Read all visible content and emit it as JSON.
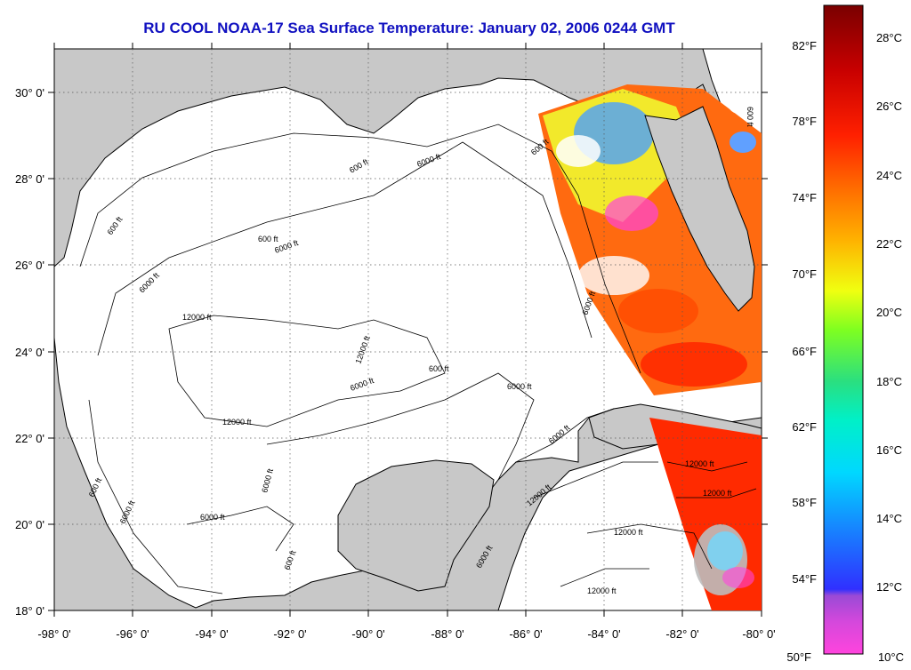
{
  "title": "RU COOL  NOAA-17  Sea Surface Temperature:  January 02, 2006 0244 GMT",
  "map": {
    "lon_range": [
      -98,
      -80
    ],
    "lat_range": [
      18,
      31
    ],
    "lon_ticks": [
      "-98° 0'",
      "-96° 0'",
      "-94° 0'",
      "-92° 0'",
      "-90° 0'",
      "-88° 0'",
      "-86° 0'",
      "-84° 0'",
      "-82° 0'",
      "-80° 0'"
    ],
    "lat_ticks": [
      "30° 0'",
      "28° 0'",
      "26° 0'",
      "24° 0'",
      "22° 0'",
      "20° 0'",
      "18° 0'"
    ],
    "contour_labels": [
      "600 ft",
      "6000 ft",
      "12000 ft",
      "600 ft",
      "6000 ft",
      "600 ft",
      "6000 ft",
      "12000 ft",
      "6000 ft",
      "600 ft",
      "6000 ft",
      "12000 ft",
      "6000 ft",
      "600 ft",
      "6000 ft",
      "6000 ft",
      "600 ft",
      "12000 ft",
      "6000 ft",
      "12000 ft",
      "12000 ft",
      "12000 ft",
      "6000 ft",
      "600 ft",
      "6000 ft",
      "12000 ft",
      "600 ft"
    ],
    "colors": {
      "land": "#c8c8c8",
      "water_nodata": "#ffffff",
      "grid": "#555555"
    }
  },
  "colorbar": {
    "fahrenheit_labels": [
      "82°F",
      "78°F",
      "74°F",
      "70°F",
      "66°F",
      "62°F",
      "58°F",
      "54°F",
      "50°F"
    ],
    "celsius_labels": [
      "28°C",
      "26°C",
      "24°C",
      "22°C",
      "20°C",
      "18°C",
      "16°C",
      "14°C",
      "12°C",
      "10°C"
    ],
    "celsius_range": [
      10,
      29
    ],
    "stops": [
      "#ff44dd",
      "#9a4ad6",
      "#2020ff",
      "#1a78ff",
      "#00e8f0",
      "#2adf80",
      "#7fff20",
      "#f0ff10",
      "#ffb000",
      "#ff5a00",
      "#ff1a00",
      "#c80000",
      "#7a0000"
    ]
  }
}
